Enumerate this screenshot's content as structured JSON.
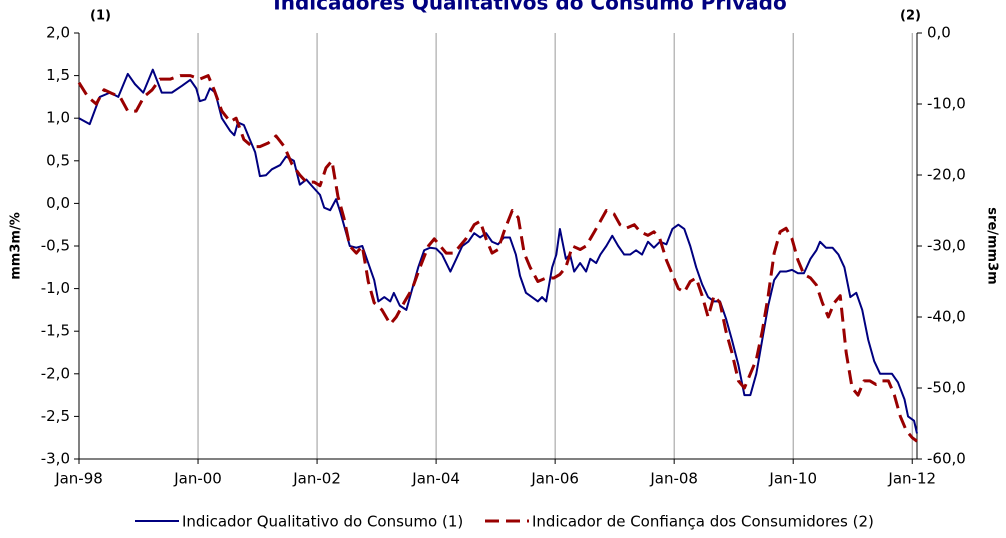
{
  "chart_data": {
    "type": "line",
    "title": "Indicadores Qualitativos do Consumo Privado",
    "annotations": [
      "(1)",
      "(2)"
    ],
    "ylabel": "mm3m/%",
    "y2label": "sre/mm3m",
    "xlim": [
      1998,
      2012.08
    ],
    "xticks": [
      {
        "value": 1998,
        "label": "Jan-98"
      },
      {
        "value": 2000,
        "label": "Jan-00"
      },
      {
        "value": 2002,
        "label": "Jan-02"
      },
      {
        "value": 2004,
        "label": "Jan-04"
      },
      {
        "value": 2006,
        "label": "Jan-06"
      },
      {
        "value": 2008,
        "label": "Jan-08"
      },
      {
        "value": 2010,
        "label": "Jan-10"
      },
      {
        "value": 2012,
        "label": "Jan-12"
      }
    ],
    "ylim": [
      -3,
      2
    ],
    "yticks": [
      {
        "value": -3,
        "label": "-3,0"
      },
      {
        "value": -2.5,
        "label": "-2,5"
      },
      {
        "value": -2,
        "label": "-2,0"
      },
      {
        "value": -1.5,
        "label": "-1,5"
      },
      {
        "value": -1,
        "label": "-1,0"
      },
      {
        "value": -0.5,
        "label": "-0,5"
      },
      {
        "value": 0,
        "label": "0,0"
      },
      {
        "value": 0.5,
        "label": "0,5"
      },
      {
        "value": 1,
        "label": "1,0"
      },
      {
        "value": 1.5,
        "label": "1,5"
      },
      {
        "value": 2,
        "label": "2,0"
      }
    ],
    "y2lim": [
      -60,
      0
    ],
    "y2ticks": [
      {
        "value": -60,
        "label": "-60,0"
      },
      {
        "value": -50,
        "label": "-50,0"
      },
      {
        "value": -40,
        "label": "-40,0"
      },
      {
        "value": -30,
        "label": "-30,0"
      },
      {
        "value": -20,
        "label": "-20,0"
      },
      {
        "value": -10,
        "label": "-10,0"
      },
      {
        "value": 0,
        "label": "0,0"
      }
    ],
    "xgrid": true,
    "series": [
      {
        "name": "Indicador Qualitativo do Consumo (1)",
        "color": "#000080",
        "dashed": false,
        "x": [
          1998.0,
          1998.18,
          1998.35,
          1998.52,
          1998.66,
          1998.82,
          1998.94,
          1999.08,
          1999.24,
          1999.39,
          1999.56,
          1999.73,
          1999.87,
          1999.97,
          2000.03,
          2000.12,
          2000.2,
          2000.29,
          2000.4,
          2000.54,
          2000.61,
          2000.67,
          2000.77,
          2000.87,
          2000.96,
          2001.04,
          2001.14,
          2001.24,
          2001.38,
          2001.48,
          2001.61,
          2001.71,
          2001.82,
          2001.92,
          2002.05,
          2002.12,
          2002.22,
          2002.32,
          2002.39,
          2002.49,
          2002.55,
          2002.66,
          2002.76,
          2002.86,
          2002.96,
          2003.03,
          2003.13,
          2003.23,
          2003.29,
          2003.39,
          2003.5,
          2003.6,
          2003.7,
          2003.8,
          2003.9,
          2004.0,
          2004.1,
          2004.24,
          2004.34,
          2004.44,
          2004.54,
          2004.64,
          2004.74,
          2004.84,
          2004.94,
          2005.04,
          2005.14,
          2005.24,
          2005.34,
          2005.41,
          2005.51,
          2005.61,
          2005.71,
          2005.78,
          2005.85,
          2005.95,
          2006.02,
          2006.08,
          2006.18,
          2006.25,
          2006.32,
          2006.42,
          2006.52,
          2006.59,
          2006.69,
          2006.76,
          2006.86,
          2006.96,
          2007.06,
          2007.16,
          2007.26,
          2007.36,
          2007.46,
          2007.56,
          2007.66,
          2007.76,
          2007.87,
          2007.97,
          2008.07,
          2008.17,
          2008.27,
          2008.37,
          2008.47,
          2008.57,
          2008.67,
          2008.77,
          2008.87,
          2008.97,
          2009.08,
          2009.18,
          2009.28,
          2009.38,
          2009.48,
          2009.58,
          2009.68,
          2009.78,
          2009.88,
          2009.98,
          2010.08,
          2010.18,
          2010.29,
          2010.39,
          2010.45,
          2010.55,
          2010.66,
          2010.76,
          2010.86,
          2010.96,
          2011.06,
          2011.16,
          2011.26,
          2011.36,
          2011.46,
          2011.56,
          2011.66,
          2011.76,
          2011.87,
          2011.93,
          2012.03,
          2012.08
        ],
        "values": [
          1.0,
          0.93,
          1.25,
          1.3,
          1.25,
          1.52,
          1.4,
          1.3,
          1.57,
          1.3,
          1.3,
          1.38,
          1.45,
          1.35,
          1.2,
          1.22,
          1.35,
          1.3,
          1.0,
          0.85,
          0.8,
          0.95,
          0.92,
          0.75,
          0.6,
          0.32,
          0.33,
          0.4,
          0.45,
          0.55,
          0.5,
          0.22,
          0.28,
          0.2,
          0.1,
          -0.05,
          -0.08,
          0.05,
          -0.1,
          -0.35,
          -0.5,
          -0.52,
          -0.5,
          -0.7,
          -0.9,
          -1.15,
          -1.1,
          -1.15,
          -1.05,
          -1.2,
          -1.25,
          -1.0,
          -0.75,
          -0.55,
          -0.52,
          -0.53,
          -0.6,
          -0.8,
          -0.65,
          -0.5,
          -0.45,
          -0.35,
          -0.4,
          -0.35,
          -0.45,
          -0.48,
          -0.4,
          -0.4,
          -0.6,
          -0.85,
          -1.05,
          -1.1,
          -1.15,
          -1.1,
          -1.15,
          -0.75,
          -0.6,
          -0.3,
          -0.65,
          -0.6,
          -0.8,
          -0.7,
          -0.8,
          -0.65,
          -0.7,
          -0.6,
          -0.5,
          -0.38,
          -0.5,
          -0.6,
          -0.6,
          -0.55,
          -0.6,
          -0.45,
          -0.52,
          -0.45,
          -0.48,
          -0.3,
          -0.25,
          -0.3,
          -0.5,
          -0.75,
          -0.95,
          -1.1,
          -1.15,
          -1.15,
          -1.35,
          -1.6,
          -1.9,
          -2.25,
          -2.25,
          -2.0,
          -1.6,
          -1.2,
          -0.9,
          -0.8,
          -0.8,
          -0.78,
          -0.82,
          -0.82,
          -0.65,
          -0.55,
          -0.45,
          -0.52,
          -0.52,
          -0.6,
          -0.75,
          -1.1,
          -1.05,
          -1.25,
          -1.6,
          -1.85,
          -2.0,
          -2.0,
          -2.0,
          -2.1,
          -2.3,
          -2.5,
          -2.55,
          -2.7
        ]
      },
      {
        "name": "Indicador de Confiança dos Consumidores (2)",
        "color": "#990000",
        "dashed": true,
        "axis": "y2",
        "x": [
          1998.0,
          1998.15,
          1998.29,
          1998.42,
          1998.55,
          1998.69,
          1998.82,
          1998.96,
          1999.09,
          1999.23,
          1999.36,
          1999.53,
          1999.7,
          1999.87,
          2000.03,
          2000.17,
          2000.27,
          2000.4,
          2000.54,
          2000.64,
          2000.77,
          2000.91,
          2001.04,
          2001.18,
          2001.31,
          2001.45,
          2001.58,
          2001.71,
          2001.82,
          2001.95,
          2002.05,
          2002.15,
          2002.25,
          2002.35,
          2002.45,
          2002.55,
          2002.66,
          2002.76,
          2002.86,
          2002.96,
          2003.09,
          2003.23,
          2003.33,
          2003.46,
          2003.6,
          2003.73,
          2003.87,
          2003.97,
          2004.07,
          2004.17,
          2004.3,
          2004.4,
          2004.5,
          2004.64,
          2004.74,
          2004.84,
          2004.94,
          2005.04,
          2005.14,
          2005.28,
          2005.38,
          2005.48,
          2005.58,
          2005.71,
          2005.85,
          2005.98,
          2006.08,
          2006.18,
          2006.29,
          2006.42,
          2006.52,
          2006.66,
          2006.76,
          2006.86,
          2006.99,
          2007.09,
          2007.19,
          2007.33,
          2007.43,
          2007.56,
          2007.66,
          2007.76,
          2007.87,
          2007.97,
          2008.07,
          2008.17,
          2008.27,
          2008.37,
          2008.47,
          2008.57,
          2008.67,
          2008.77,
          2008.87,
          2008.97,
          2009.08,
          2009.18,
          2009.28,
          2009.38,
          2009.48,
          2009.58,
          2009.68,
          2009.78,
          2009.88,
          2009.98,
          2010.08,
          2010.18,
          2010.29,
          2010.39,
          2010.49,
          2010.59,
          2010.69,
          2010.79,
          2010.89,
          2010.99,
          2011.09,
          2011.19,
          2011.29,
          2011.39,
          2011.5,
          2011.6,
          2011.7,
          2011.8,
          2011.9,
          2012.0,
          2012.08
        ],
        "values": [
          -7,
          -9,
          -10,
          -8,
          -8.5,
          -9,
          -11,
          -11,
          -9,
          -8,
          -6.5,
          -6.5,
          -6,
          -6,
          -6.5,
          -6,
          -8,
          -11,
          -12.5,
          -12,
          -15,
          -16,
          -16,
          -15.5,
          -14.5,
          -16,
          -18.5,
          -20,
          -21,
          -21,
          -21.5,
          -19,
          -18,
          -23,
          -26,
          -30,
          -31,
          -30,
          -35,
          -38,
          -39,
          -41,
          -40,
          -38,
          -36,
          -33,
          -30,
          -29,
          -30,
          -31,
          -31,
          -30,
          -29,
          -27,
          -26.5,
          -29,
          -31,
          -30.5,
          -28,
          -25,
          -26,
          -31,
          -33,
          -35,
          -34.5,
          -34.5,
          -34,
          -33,
          -30,
          -30.5,
          -30,
          -28,
          -26.5,
          -25,
          -25.5,
          -27,
          -27.5,
          -27,
          -28,
          -28.5,
          -28,
          -29,
          -32,
          -34,
          -36,
          -36.5,
          -35,
          -34.5,
          -37,
          -40,
          -37,
          -38,
          -42,
          -45,
          -49,
          -50,
          -48,
          -46,
          -42,
          -37,
          -31,
          -28,
          -27.5,
          -29,
          -32,
          -34,
          -34.5,
          -35.5,
          -38,
          -40,
          -38,
          -37,
          -45,
          -50,
          -51,
          -49,
          -49,
          -49.5,
          -49,
          -49,
          -51,
          -54,
          -56,
          -57,
          -57.5
        ]
      }
    ]
  }
}
